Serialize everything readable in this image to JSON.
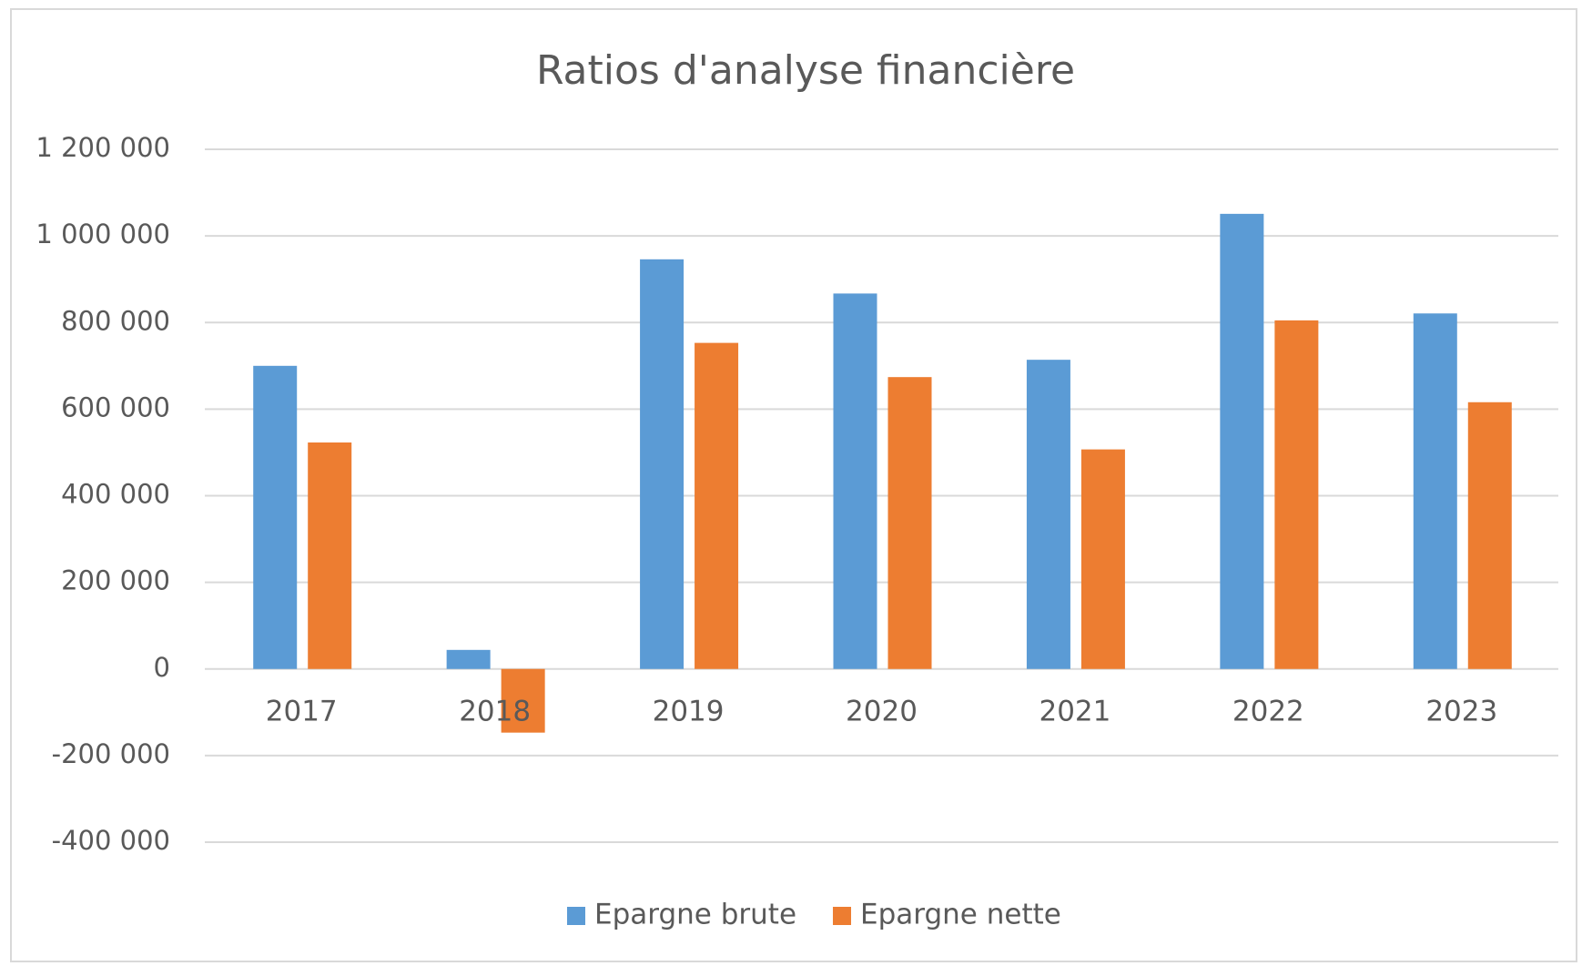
{
  "chart_data": {
    "type": "bar",
    "title": "Ratios d'analyse financière",
    "categories": [
      "2017",
      "2018",
      "2019",
      "2020",
      "2021",
      "2022",
      "2023"
    ],
    "series": [
      {
        "name": "Epargne brute",
        "color": "#5b9bd5",
        "values": [
          700000,
          44000,
          946000,
          867000,
          714000,
          1051000,
          821000
        ]
      },
      {
        "name": "Epargne nette",
        "color": "#ed7d31",
        "values": [
          523000,
          -147000,
          753000,
          674000,
          507000,
          805000,
          616000
        ]
      }
    ],
    "ylim": [
      -400000,
      1200000
    ],
    "yticks": [
      {
        "value": -400000,
        "label": "-400 000"
      },
      {
        "value": -200000,
        "label": "-200 000"
      },
      0,
      {
        "value": 200000,
        "label": "200 000"
      },
      {
        "value": 400000,
        "label": "400 000"
      },
      {
        "value": 600000,
        "label": "600 000"
      },
      {
        "value": 800000,
        "label": "800 000"
      },
      {
        "value": 1000000,
        "label": "1 000 000"
      },
      {
        "value": 1200000,
        "label": "1 200 000"
      }
    ],
    "grid": true,
    "legend": "bottom"
  }
}
